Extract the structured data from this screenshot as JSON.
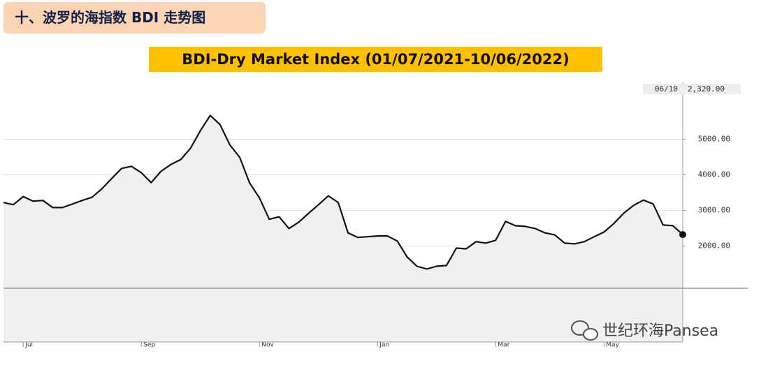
{
  "header": {
    "title": "十、波罗的海指数 BDI 走势图"
  },
  "watermark": "世纪环海Pansea",
  "chart_data": {
    "type": "line",
    "title": "BDI-Dry Market Index (01/07/2021-10/06/2022)",
    "categories": [
      null,
      null,
      "Jul",
      null,
      null,
      null,
      null,
      null,
      null,
      null,
      null,
      null,
      null,
      null,
      "Sep",
      null,
      null,
      null,
      null,
      null,
      null,
      null,
      null,
      null,
      null,
      null,
      "Nov",
      null,
      null,
      null,
      null,
      null,
      null,
      null,
      null,
      null,
      null,
      null,
      "Jan",
      null,
      null,
      null,
      null,
      null,
      null,
      null,
      null,
      null,
      null,
      null,
      "Mar",
      null,
      null,
      null,
      null,
      null,
      null,
      null,
      null,
      null,
      null,
      "May",
      null,
      null,
      null,
      null,
      null,
      null,
      null,
      null
    ],
    "series": [
      {
        "name": "BDI",
        "color": "#111111",
        "values": [
          3220,
          3160,
          3390,
          3260,
          3280,
          3080,
          3080,
          3180,
          3280,
          3370,
          3610,
          3900,
          4180,
          4240,
          4060,
          3780,
          4100,
          4290,
          4430,
          4750,
          5240,
          5670,
          5410,
          4840,
          4490,
          3770,
          3350,
          2750,
          2820,
          2490,
          2670,
          2920,
          3160,
          3410,
          3220,
          2370,
          2240,
          2260,
          2280,
          2280,
          2140,
          1690,
          1430,
          1350,
          1430,
          1450,
          1940,
          1920,
          2120,
          2080,
          2160,
          2690,
          2570,
          2550,
          2490,
          2370,
          2310,
          2080,
          2060,
          2120,
          2260,
          2390,
          2630,
          2920,
          3140,
          3290,
          3180,
          2590,
          2570,
          2320
        ]
      }
    ],
    "ylim": [
      -700,
      6600
    ],
    "yticks": [
      {
        "value": 2000,
        "label": "2000.00"
      },
      {
        "value": 3000,
        "label": "3000.00"
      },
      {
        "value": 4000,
        "label": "4000.00"
      },
      {
        "value": 5000,
        "label": "5000.00"
      }
    ],
    "grid": true,
    "end_label": {
      "date": "06/10",
      "value": 2320,
      "label": "2,320.00"
    }
  }
}
